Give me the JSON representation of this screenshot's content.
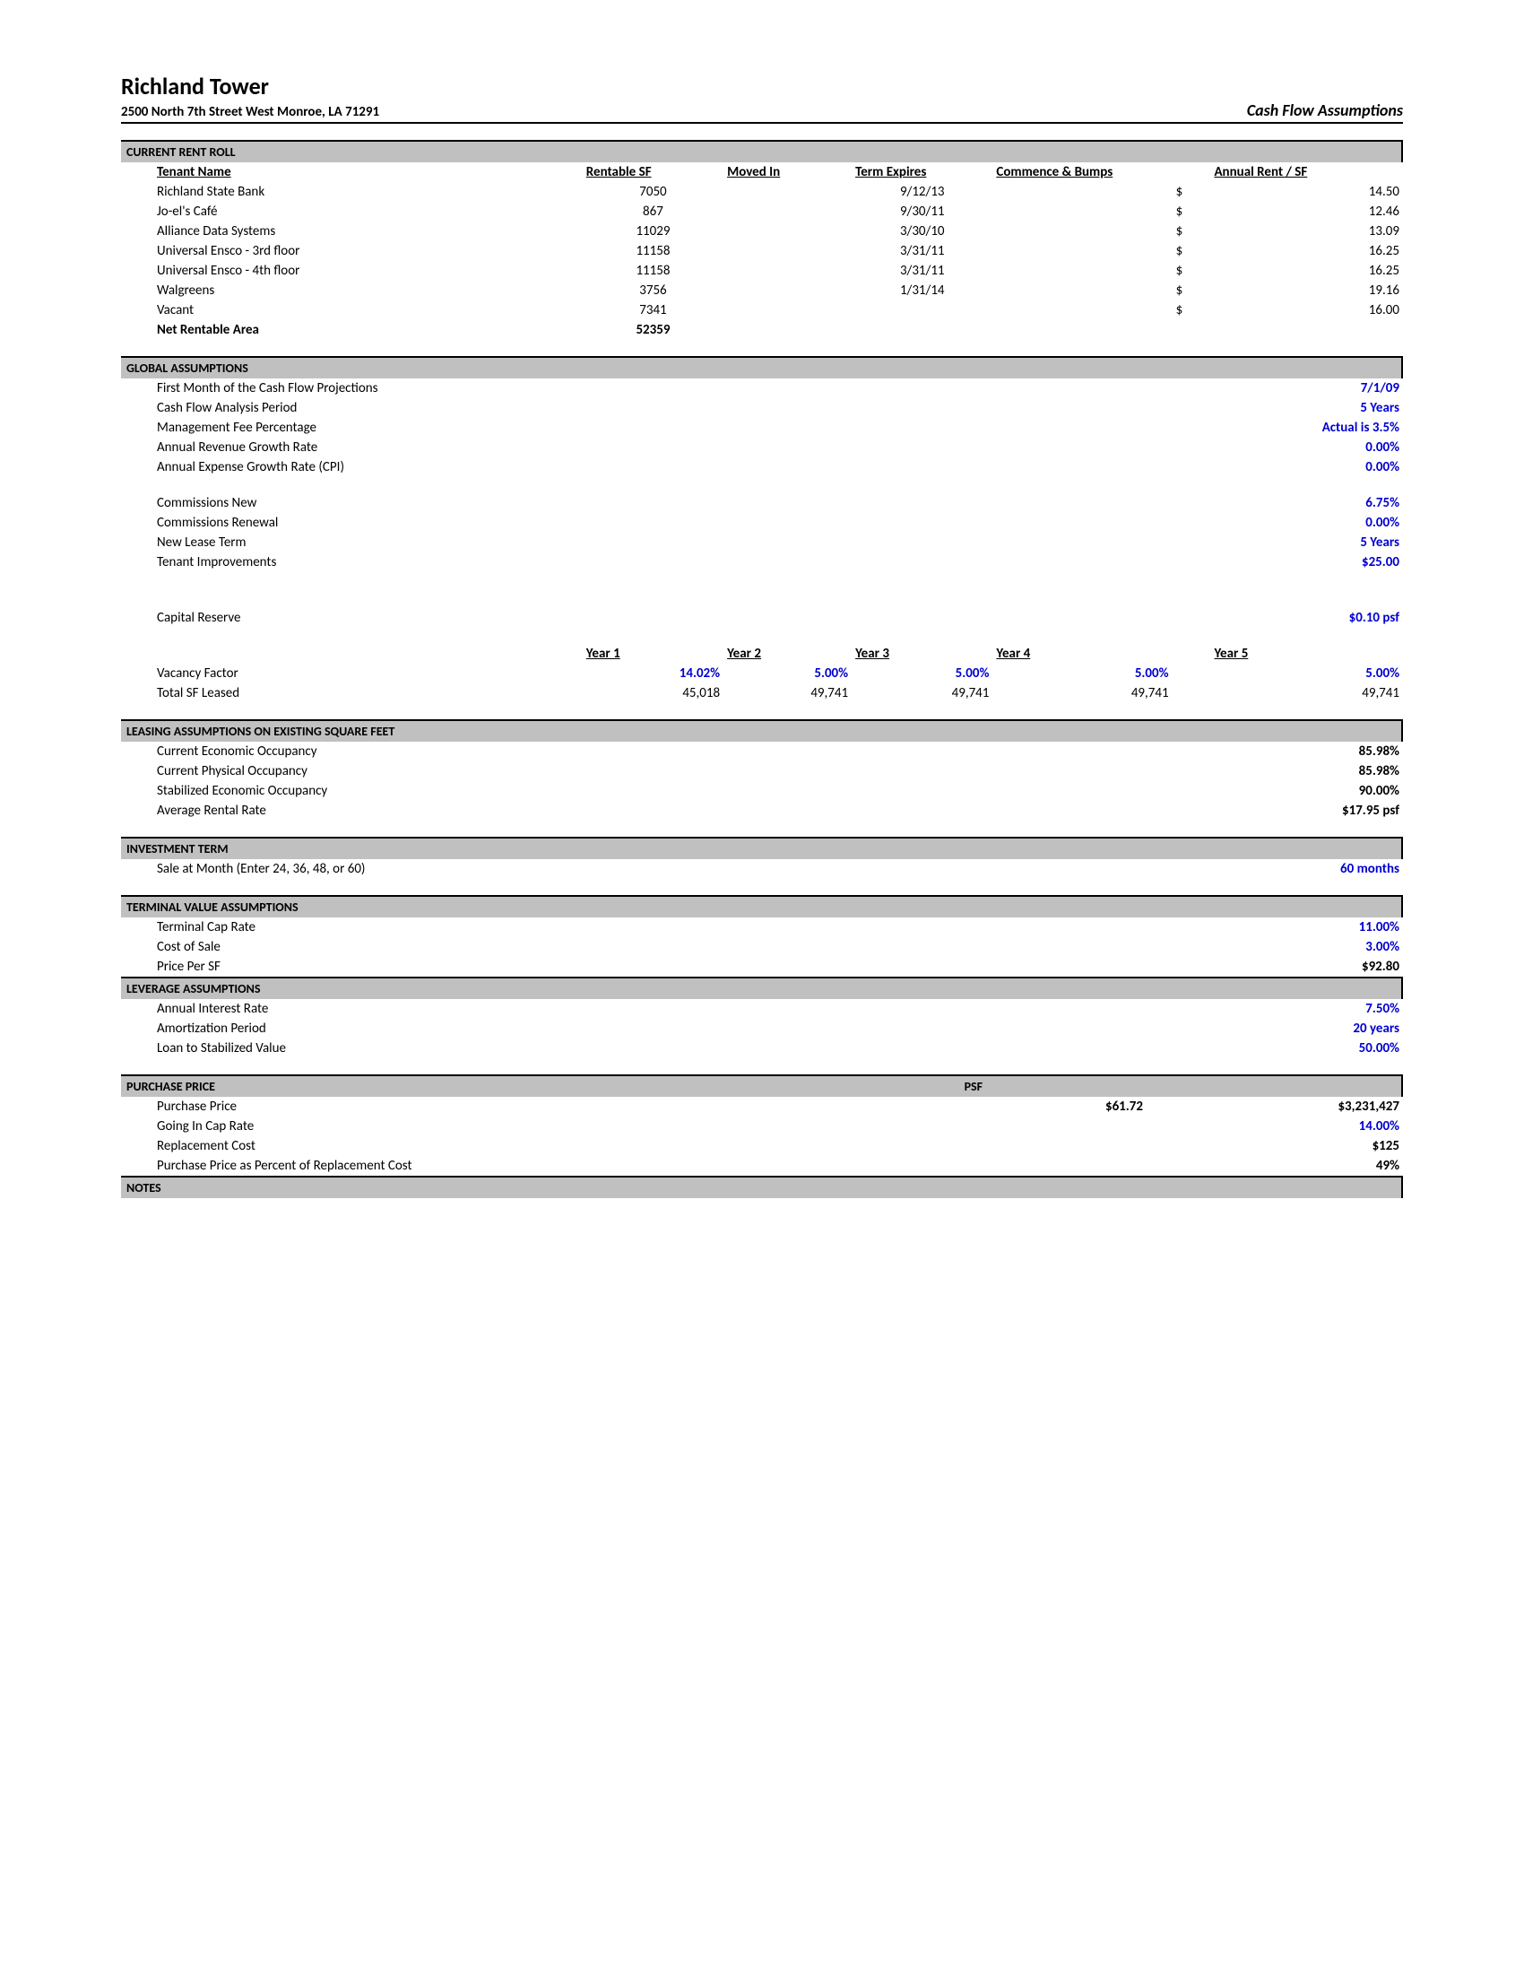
{
  "header": {
    "title": "Richland Tower",
    "address": "2500 North 7th Street West Monroe, LA 71291",
    "doc_type": "Cash Flow Assumptions"
  },
  "rentRoll": {
    "heading": "CURRENT RENT ROLL",
    "cols": {
      "tenant": "Tenant Name",
      "rsf": "Rentable SF",
      "moved": "Moved In",
      "term": "Term Expires",
      "bumps": "Commence & Bumps",
      "rent": "Annual Rent / SF"
    },
    "rows": [
      {
        "tenant": "Richland State Bank",
        "rsf": "7050",
        "moved": "",
        "term": "9/12/13",
        "bumps": "",
        "cur": "$",
        "rent": "14.50"
      },
      {
        "tenant": "Jo-el's Café",
        "rsf": "867",
        "moved": "",
        "term": "9/30/11",
        "bumps": "",
        "cur": "$",
        "rent": "12.46"
      },
      {
        "tenant": "Alliance Data Systems",
        "rsf": "11029",
        "moved": "",
        "term": "3/30/10",
        "bumps": "",
        "cur": "$",
        "rent": "13.09"
      },
      {
        "tenant": "Universal Ensco - 3rd floor",
        "rsf": "11158",
        "moved": "",
        "term": "3/31/11",
        "bumps": "",
        "cur": "$",
        "rent": "16.25"
      },
      {
        "tenant": "Universal Ensco - 4th floor",
        "rsf": "11158",
        "moved": "",
        "term": "3/31/11",
        "bumps": "",
        "cur": "$",
        "rent": "16.25"
      },
      {
        "tenant": "Walgreens",
        "rsf": "3756",
        "moved": "",
        "term": "1/31/14",
        "bumps": "",
        "cur": "$",
        "rent": "19.16"
      },
      {
        "tenant": "Vacant",
        "rsf": "7341",
        "moved": "",
        "term": "",
        "bumps": "",
        "cur": "$",
        "rent": "16.00"
      }
    ],
    "total": {
      "label": "Net Rentable Area",
      "rsf": "52359"
    }
  },
  "global": {
    "heading": "GLOBAL ASSUMPTIONS",
    "items1": [
      {
        "k": "First Month of the Cash Flow Projections",
        "v": "7/1/09",
        "blue": true
      },
      {
        "k": "Cash Flow Analysis Period",
        "v": "5 Years",
        "blue": true
      },
      {
        "k": "Management Fee Percentage",
        "v": "Actual is 3.5%",
        "blue": true
      },
      {
        "k": "Annual Revenue Growth Rate",
        "v": "0.00%",
        "blue": true
      },
      {
        "k": "Annual Expense Growth Rate (CPI)",
        "v": "0.00%",
        "blue": true
      }
    ],
    "items2": [
      {
        "k": "Commissions New",
        "v": "6.75%",
        "blue": true
      },
      {
        "k": "Commissions Renewal",
        "v": "0.00%",
        "blue": true
      },
      {
        "k": "New Lease Term",
        "v": "5 Years",
        "blue": true
      },
      {
        "k": "Tenant Improvements",
        "v": "$25.00",
        "blue": true
      }
    ],
    "cap": {
      "k": "Capital Reserve",
      "v": "$0.10 psf",
      "blue": true
    },
    "yearCols": [
      "Year 1",
      "Year 2",
      "Year 3",
      "Year 4",
      "Year 5"
    ],
    "yearRows": [
      {
        "k": "Vacancy Factor",
        "v": [
          "14.02%",
          "5.00%",
          "5.00%",
          "5.00%",
          "5.00%"
        ],
        "blue": true
      },
      {
        "k": "Total SF Leased",
        "v": [
          "45,018",
          "49,741",
          "49,741",
          "49,741",
          "49,741"
        ],
        "blue": false
      }
    ]
  },
  "leasing": {
    "heading": "LEASING ASSUMPTIONS ON EXISTING SQUARE FEET",
    "items": [
      {
        "k": "Current Economic Occupancy",
        "v": "85.98%"
      },
      {
        "k": "Current Physical Occupancy",
        "v": "85.98%"
      },
      {
        "k": "Stabilized Economic Occupancy",
        "v": "90.00%"
      },
      {
        "k": "Average Rental Rate",
        "v": "$17.95 psf"
      }
    ]
  },
  "invest": {
    "heading": "INVESTMENT TERM",
    "items": [
      {
        "k": "Sale at Month (Enter 24, 36, 48, or 60)",
        "v": "60 months",
        "blue": true
      }
    ]
  },
  "terminal": {
    "heading": "TERMINAL VALUE ASSUMPTIONS",
    "items": [
      {
        "k": "Terminal Cap Rate",
        "v": "11.00%",
        "blue": true
      },
      {
        "k": "Cost of Sale",
        "v": "3.00%",
        "blue": true
      },
      {
        "k": "Price Per SF",
        "v": "$92.80",
        "blue": false
      }
    ]
  },
  "leverage": {
    "heading": "LEVERAGE ASSUMPTIONS",
    "items": [
      {
        "k": "Annual Interest Rate",
        "v": "7.50%",
        "blue": true
      },
      {
        "k": "Amortization Period",
        "v": "20 years",
        "blue": true
      },
      {
        "k": "Loan to Stabilized Value",
        "v": "50.00%",
        "blue": true
      }
    ]
  },
  "purchase": {
    "heading": "PURCHASE PRICE",
    "psfLabel": "PSF",
    "rows": [
      {
        "k": "Purchase Price",
        "psf": "$61.72",
        "v": "$3,231,427",
        "blue": false
      },
      {
        "k": "Going In Cap Rate",
        "psf": "",
        "v": "14.00%",
        "blue": true
      },
      {
        "k": "Replacement Cost",
        "psf": "",
        "v": "$125",
        "blue": false
      },
      {
        "k": "Purchase Price as Percent of Replacement Cost",
        "psf": "",
        "v": "49%",
        "blue": false
      }
    ]
  },
  "notes": {
    "heading": "NOTES"
  }
}
